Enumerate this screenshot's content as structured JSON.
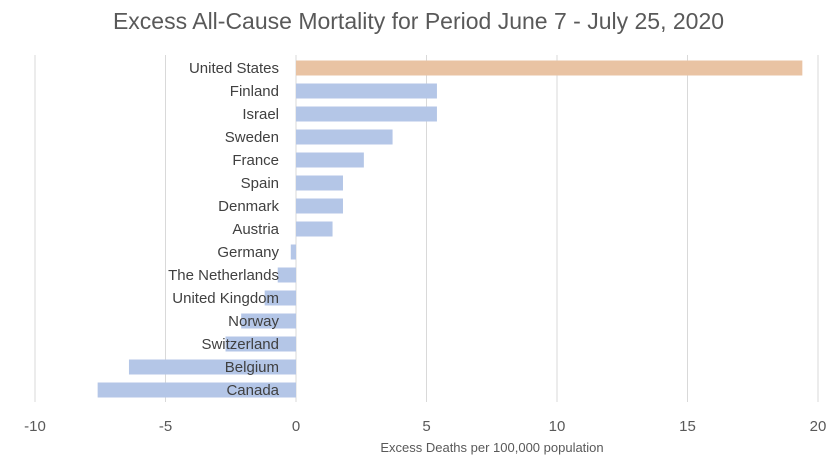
{
  "chart_data": {
    "type": "bar",
    "orientation": "horizontal",
    "title": "Excess All-Cause Mortality for Period June 7 - July 25, 2020",
    "xlabel": "Excess Deaths per 100,000 population",
    "ylabel": "",
    "categories": [
      "United States",
      "Finland",
      "Israel",
      "Sweden",
      "France",
      "Spain",
      "Denmark",
      "Austria",
      "Germany",
      "The Netherlands",
      "United Kingdom",
      "Norway",
      "Switzerland",
      "Belgium",
      "Canada"
    ],
    "values": [
      19.4,
      5.4,
      5.4,
      3.7,
      2.6,
      1.8,
      1.8,
      1.4,
      -0.2,
      -0.7,
      -1.2,
      -2.1,
      -2.7,
      -6.4,
      -7.6
    ],
    "xlim": [
      -10,
      20
    ],
    "xticks": [
      -10,
      -5,
      0,
      5,
      10,
      15,
      20
    ],
    "grid": "vertical",
    "highlight_category": "United States",
    "colors": {
      "highlight": "#e9c3a3",
      "default": "#b4c6e7",
      "grid": "#d9d9d9",
      "text": "#595959"
    }
  }
}
